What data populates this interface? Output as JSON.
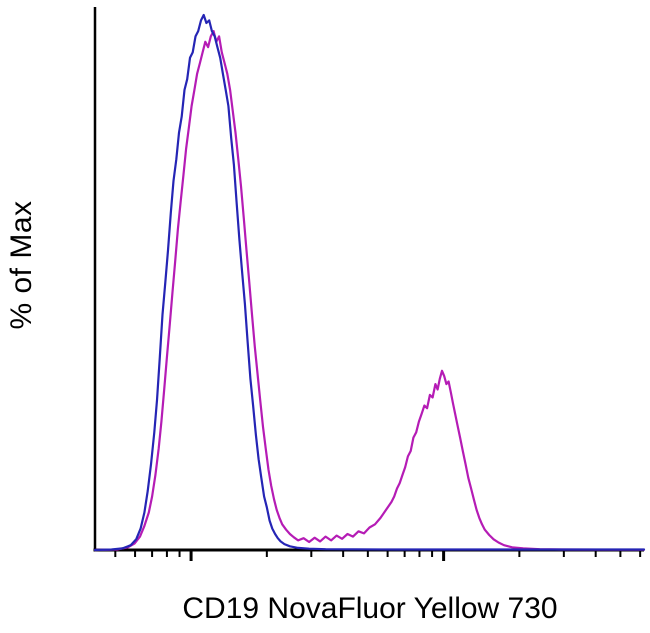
{
  "chart_data": {
    "type": "line",
    "subtype": "flow-cytometry-histogram",
    "title": "",
    "xlabel": "CD19 NovaFluor Yellow 730",
    "ylabel": "% of Max",
    "xlim": [
      0,
      100
    ],
    "ylim": [
      0,
      100
    ],
    "grid": false,
    "legend_position": "none",
    "background": "#ffffff",
    "axis_color": "#000000",
    "x_ticks": {
      "major": [
        17.5,
        63.5
      ],
      "minor": [
        3.7,
        7.3,
        10.4,
        13.1,
        15.4,
        31.3,
        39.4,
        45.2,
        49.7,
        53.3,
        56.4,
        59.1,
        61.4,
        77.3,
        85.4,
        91.2,
        95.7,
        99.3
      ]
    },
    "series": [
      {
        "name": "blue-series",
        "color": "#2525b5",
        "points": [
          [
            0,
            0
          ],
          [
            3,
            0.1
          ],
          [
            5,
            0.3
          ],
          [
            6.5,
            0.9
          ],
          [
            7.5,
            2
          ],
          [
            8.3,
            4
          ],
          [
            9,
            7
          ],
          [
            9.6,
            11
          ],
          [
            10.2,
            16
          ],
          [
            10.8,
            22
          ],
          [
            11.3,
            28
          ],
          [
            11.8,
            36
          ],
          [
            12.3,
            44
          ],
          [
            12.8,
            50
          ],
          [
            13.3,
            56
          ],
          [
            13.8,
            63
          ],
          [
            14.3,
            69
          ],
          [
            14.8,
            73
          ],
          [
            15.3,
            78
          ],
          [
            15.8,
            81
          ],
          [
            16.3,
            86
          ],
          [
            16.8,
            88
          ],
          [
            17.3,
            92
          ],
          [
            17.8,
            93
          ],
          [
            18.3,
            96
          ],
          [
            18.8,
            97
          ],
          [
            19.3,
            99
          ],
          [
            19.8,
            100
          ],
          [
            20.3,
            98.5
          ],
          [
            20.8,
            99
          ],
          [
            21.3,
            97
          ],
          [
            21.8,
            96
          ],
          [
            22.3,
            94
          ],
          [
            22.8,
            92
          ],
          [
            23.3,
            89
          ],
          [
            23.8,
            86
          ],
          [
            24.3,
            83
          ],
          [
            24.8,
            77
          ],
          [
            25.3,
            72
          ],
          [
            25.8,
            65
          ],
          [
            26.3,
            58
          ],
          [
            26.8,
            52
          ],
          [
            27.3,
            46
          ],
          [
            27.8,
            39
          ],
          [
            28.3,
            32
          ],
          [
            28.8,
            27
          ],
          [
            29.3,
            21.5
          ],
          [
            29.8,
            17
          ],
          [
            30.3,
            13.5
          ],
          [
            30.8,
            10
          ],
          [
            31.3,
            8
          ],
          [
            31.8,
            5.5
          ],
          [
            32.3,
            4
          ],
          [
            32.8,
            3
          ],
          [
            33.3,
            2.2
          ],
          [
            33.8,
            1.6
          ],
          [
            34.5,
            1.1
          ],
          [
            35.5,
            0.7
          ],
          [
            37,
            0.4
          ],
          [
            39,
            0.25
          ],
          [
            42,
            0.15
          ],
          [
            55,
            0.1
          ],
          [
            100,
            0.1
          ]
        ]
      },
      {
        "name": "magenta-series",
        "color": "#b51cb5",
        "points": [
          [
            0,
            0
          ],
          [
            4,
            0.1
          ],
          [
            6,
            0.5
          ],
          [
            7.2,
            1.2
          ],
          [
            8.2,
            2.5
          ],
          [
            9,
            4.5
          ],
          [
            9.8,
            7
          ],
          [
            10.4,
            10
          ],
          [
            11,
            14
          ],
          [
            11.6,
            19
          ],
          [
            12.1,
            24
          ],
          [
            12.6,
            30
          ],
          [
            13.1,
            36
          ],
          [
            13.6,
            42
          ],
          [
            14.1,
            48
          ],
          [
            14.6,
            54
          ],
          [
            15.1,
            60
          ],
          [
            15.6,
            65
          ],
          [
            16.1,
            70
          ],
          [
            16.6,
            75
          ],
          [
            17.1,
            79
          ],
          [
            17.6,
            83
          ],
          [
            18.1,
            86
          ],
          [
            18.6,
            89
          ],
          [
            19.1,
            91
          ],
          [
            19.6,
            93
          ],
          [
            20.1,
            95
          ],
          [
            20.6,
            94
          ],
          [
            21.1,
            96
          ],
          [
            21.6,
            97
          ],
          [
            22.1,
            95
          ],
          [
            22.6,
            96
          ],
          [
            23.1,
            93
          ],
          [
            23.6,
            91
          ],
          [
            24.1,
            89
          ],
          [
            24.6,
            86
          ],
          [
            25.1,
            82
          ],
          [
            25.6,
            78
          ],
          [
            26.1,
            73
          ],
          [
            26.6,
            68
          ],
          [
            27.1,
            62
          ],
          [
            27.6,
            56
          ],
          [
            28.1,
            50
          ],
          [
            28.6,
            44
          ],
          [
            29.1,
            38
          ],
          [
            29.6,
            33
          ],
          [
            30.1,
            28
          ],
          [
            30.6,
            23
          ],
          [
            31.1,
            19
          ],
          [
            31.6,
            15
          ],
          [
            32.1,
            12
          ],
          [
            32.6,
            9.5
          ],
          [
            33.1,
            7.5
          ],
          [
            33.6,
            6
          ],
          [
            34.1,
            4.8
          ],
          [
            34.8,
            3.8
          ],
          [
            35.5,
            3
          ],
          [
            36.2,
            2.4
          ],
          [
            37,
            1.8
          ],
          [
            38,
            2.2
          ],
          [
            39,
            1.5
          ],
          [
            40,
            2.3
          ],
          [
            41,
            1.6
          ],
          [
            42,
            2.5
          ],
          [
            43,
            1.8
          ],
          [
            44,
            2.7
          ],
          [
            45,
            2.1
          ],
          [
            46,
            3
          ],
          [
            47,
            2.5
          ],
          [
            48,
            3.5
          ],
          [
            49,
            3.1
          ],
          [
            50,
            4.2
          ],
          [
            51,
            4.8
          ],
          [
            52,
            6
          ],
          [
            53,
            7.5
          ],
          [
            54,
            9
          ],
          [
            54.5,
            10
          ],
          [
            55,
            11.5
          ],
          [
            55.5,
            12.5
          ],
          [
            56,
            14
          ],
          [
            56.5,
            15.5
          ],
          [
            57,
            17.5
          ],
          [
            57.5,
            18.5
          ],
          [
            58,
            21
          ],
          [
            58.5,
            22
          ],
          [
            59,
            24
          ],
          [
            59.5,
            25.5
          ],
          [
            60,
            27
          ],
          [
            60.5,
            26.5
          ],
          [
            61,
            29
          ],
          [
            61.5,
            28.5
          ],
          [
            62,
            31
          ],
          [
            62.4,
            30
          ],
          [
            62.8,
            32
          ],
          [
            63.2,
            33.5
          ],
          [
            63.6,
            32.5
          ],
          [
            64,
            31
          ],
          [
            64.4,
            31.5
          ],
          [
            64.8,
            29.5
          ],
          [
            65.2,
            27.5
          ],
          [
            65.6,
            25.5
          ],
          [
            66,
            23.5
          ],
          [
            66.5,
            21
          ],
          [
            67,
            18.5
          ],
          [
            67.5,
            16
          ],
          [
            68,
            13.5
          ],
          [
            68.5,
            11.5
          ],
          [
            69,
            9.5
          ],
          [
            69.5,
            7.5
          ],
          [
            70,
            6
          ],
          [
            70.5,
            4.8
          ],
          [
            71,
            3.8
          ],
          [
            71.8,
            2.8
          ],
          [
            72.6,
            2
          ],
          [
            73.5,
            1.4
          ],
          [
            74.5,
            0.9
          ],
          [
            76,
            0.5
          ],
          [
            78,
            0.3
          ],
          [
            81,
            0.15
          ],
          [
            85,
            0.1
          ],
          [
            100,
            0.05
          ]
        ]
      }
    ]
  }
}
